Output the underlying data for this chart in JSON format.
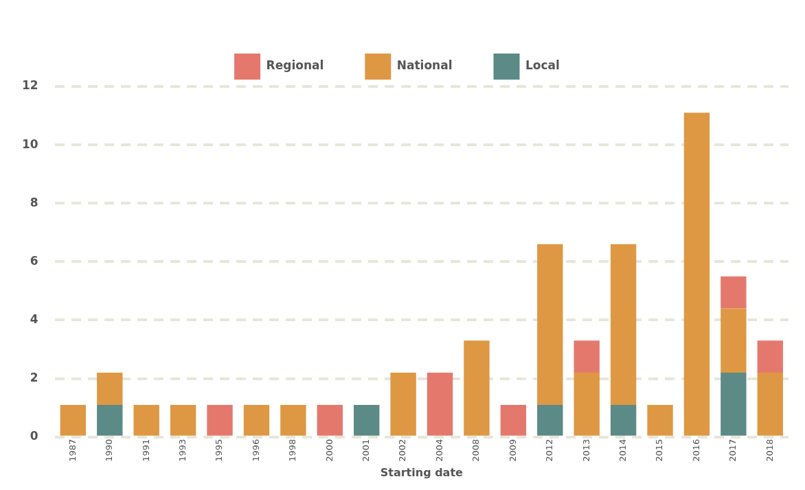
{
  "chart_data": {
    "type": "bar",
    "stacked": true,
    "xlabel": "Starting date",
    "categories": [
      "1987",
      "1990",
      "1991",
      "1993",
      "1995",
      "1996",
      "1998",
      "2000",
      "2001",
      "2002",
      "2004",
      "2008",
      "2009",
      "2012",
      "2013",
      "2014",
      "2015",
      "2016",
      "2017",
      "2018"
    ],
    "series": [
      {
        "name": "Local",
        "color": "#5b8a87",
        "values": [
          null,
          1.1,
          null,
          null,
          null,
          null,
          null,
          null,
          1.1,
          null,
          null,
          null,
          null,
          1.1,
          null,
          1.1,
          null,
          null,
          2.2,
          null
        ]
      },
      {
        "name": "National",
        "color": "#de9843",
        "values": [
          1.1,
          1.1,
          1.1,
          1.1,
          null,
          1.1,
          1.1,
          null,
          null,
          2.2,
          null,
          3.3,
          null,
          5.5,
          2.2,
          5.5,
          1.1,
          11.1,
          2.2,
          2.2
        ]
      },
      {
        "name": "Regional",
        "color": "#e5786d",
        "values": [
          null,
          null,
          null,
          null,
          1.1,
          null,
          null,
          1.1,
          null,
          null,
          2.2,
          null,
          1.1,
          null,
          1.1,
          null,
          null,
          null,
          1.1,
          1.1
        ]
      }
    ],
    "ylim": [
      0,
      12
    ],
    "yticks": [
      0,
      2,
      4,
      6,
      8,
      10,
      12
    ],
    "grid": "y",
    "legend": "top"
  }
}
